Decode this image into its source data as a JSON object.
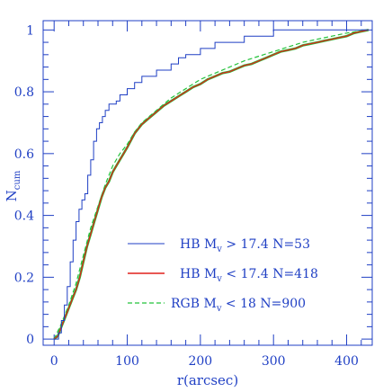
{
  "chart_data": {
    "type": "line",
    "title": "",
    "xlabel": "r(arcsec)",
    "ylabel": "N_cum",
    "ylabel_main": "N",
    "ylabel_sub": "cum",
    "xlim": [
      -15,
      435
    ],
    "ylim": [
      -0.02,
      1.03
    ],
    "xticks": [
      0,
      100,
      200,
      300,
      400
    ],
    "xtick_labels": [
      "0",
      "100",
      "200",
      "300",
      "400"
    ],
    "yticks": [
      0,
      0.2,
      0.4,
      0.6,
      0.8,
      1
    ],
    "ytick_labels": [
      "0",
      "0.2",
      "0.4",
      "0.6",
      "0.8",
      "1"
    ],
    "grid": false,
    "legend_position": "bottom-right",
    "colors": {
      "axes": "#1f3fc4",
      "text": "#1f3fc4"
    },
    "series": [
      {
        "name": "HB M_v > 17.4 N=53",
        "legend_parts": [
          "HB M",
          "v",
          " > 17.4 N=53"
        ],
        "color": "#1f3fc4",
        "style": "solid-step",
        "x": [
          0,
          6,
          10,
          14,
          18,
          22,
          26,
          30,
          34,
          38,
          42,
          46,
          50,
          54,
          58,
          62,
          66,
          70,
          75,
          80,
          85,
          90,
          95,
          100,
          110,
          120,
          130,
          140,
          150,
          160,
          170,
          180,
          200,
          220,
          240,
          260,
          280,
          300,
          320,
          340,
          360,
          380,
          400,
          420,
          430
        ],
        "y": [
          0,
          0.02,
          0.06,
          0.11,
          0.17,
          0.25,
          0.32,
          0.38,
          0.42,
          0.45,
          0.47,
          0.53,
          0.58,
          0.64,
          0.68,
          0.7,
          0.72,
          0.74,
          0.76,
          0.76,
          0.77,
          0.79,
          0.79,
          0.81,
          0.83,
          0.85,
          0.85,
          0.87,
          0.87,
          0.89,
          0.91,
          0.92,
          0.94,
          0.96,
          0.96,
          0.98,
          0.98,
          1.0,
          1.0,
          1.0,
          1.0,
          1.0,
          1.0,
          1.0,
          1.0
        ]
      },
      {
        "name": "HB M_v < 17.4 N=418",
        "legend_parts": [
          "HB M",
          "v",
          " < 17.4 N=418"
        ],
        "color": "#e0201b",
        "underlay_color": "#23c23a",
        "style": "solid",
        "x": [
          0,
          5,
          10,
          15,
          20,
          25,
          30,
          35,
          40,
          45,
          50,
          55,
          60,
          65,
          70,
          75,
          80,
          85,
          90,
          95,
          100,
          110,
          120,
          130,
          140,
          150,
          160,
          170,
          180,
          190,
          200,
          210,
          220,
          230,
          240,
          250,
          260,
          270,
          280,
          290,
          300,
          310,
          320,
          330,
          340,
          350,
          360,
          370,
          380,
          390,
          400,
          410,
          420,
          430
        ],
        "y": [
          0,
          0.01,
          0.04,
          0.07,
          0.1,
          0.13,
          0.16,
          0.2,
          0.25,
          0.3,
          0.34,
          0.38,
          0.42,
          0.46,
          0.49,
          0.51,
          0.54,
          0.56,
          0.58,
          0.6,
          0.62,
          0.665,
          0.695,
          0.715,
          0.735,
          0.755,
          0.77,
          0.785,
          0.8,
          0.815,
          0.825,
          0.84,
          0.85,
          0.86,
          0.865,
          0.875,
          0.885,
          0.89,
          0.9,
          0.91,
          0.92,
          0.93,
          0.935,
          0.94,
          0.95,
          0.955,
          0.96,
          0.965,
          0.97,
          0.975,
          0.98,
          0.99,
          0.995,
          1.0
        ]
      },
      {
        "name": "RGB M_v < 18 N=900",
        "legend_parts": [
          "RGB M",
          "v",
          " < 18  N=900"
        ],
        "color": "#23c23a",
        "style": "dashed",
        "x": [
          0,
          10,
          20,
          30,
          40,
          50,
          60,
          70,
          80,
          90,
          100,
          110,
          120,
          130,
          140,
          150,
          160,
          170,
          180,
          190,
          200,
          220,
          240,
          260,
          280,
          300,
          320,
          340,
          360,
          380,
          400,
          420,
          430
        ],
        "y": [
          0,
          0.05,
          0.11,
          0.18,
          0.27,
          0.36,
          0.43,
          0.5,
          0.56,
          0.6,
          0.63,
          0.67,
          0.7,
          0.72,
          0.74,
          0.76,
          0.78,
          0.795,
          0.81,
          0.825,
          0.84,
          0.86,
          0.88,
          0.9,
          0.915,
          0.93,
          0.945,
          0.96,
          0.97,
          0.98,
          0.99,
          0.997,
          1.0
        ]
      }
    ]
  }
}
